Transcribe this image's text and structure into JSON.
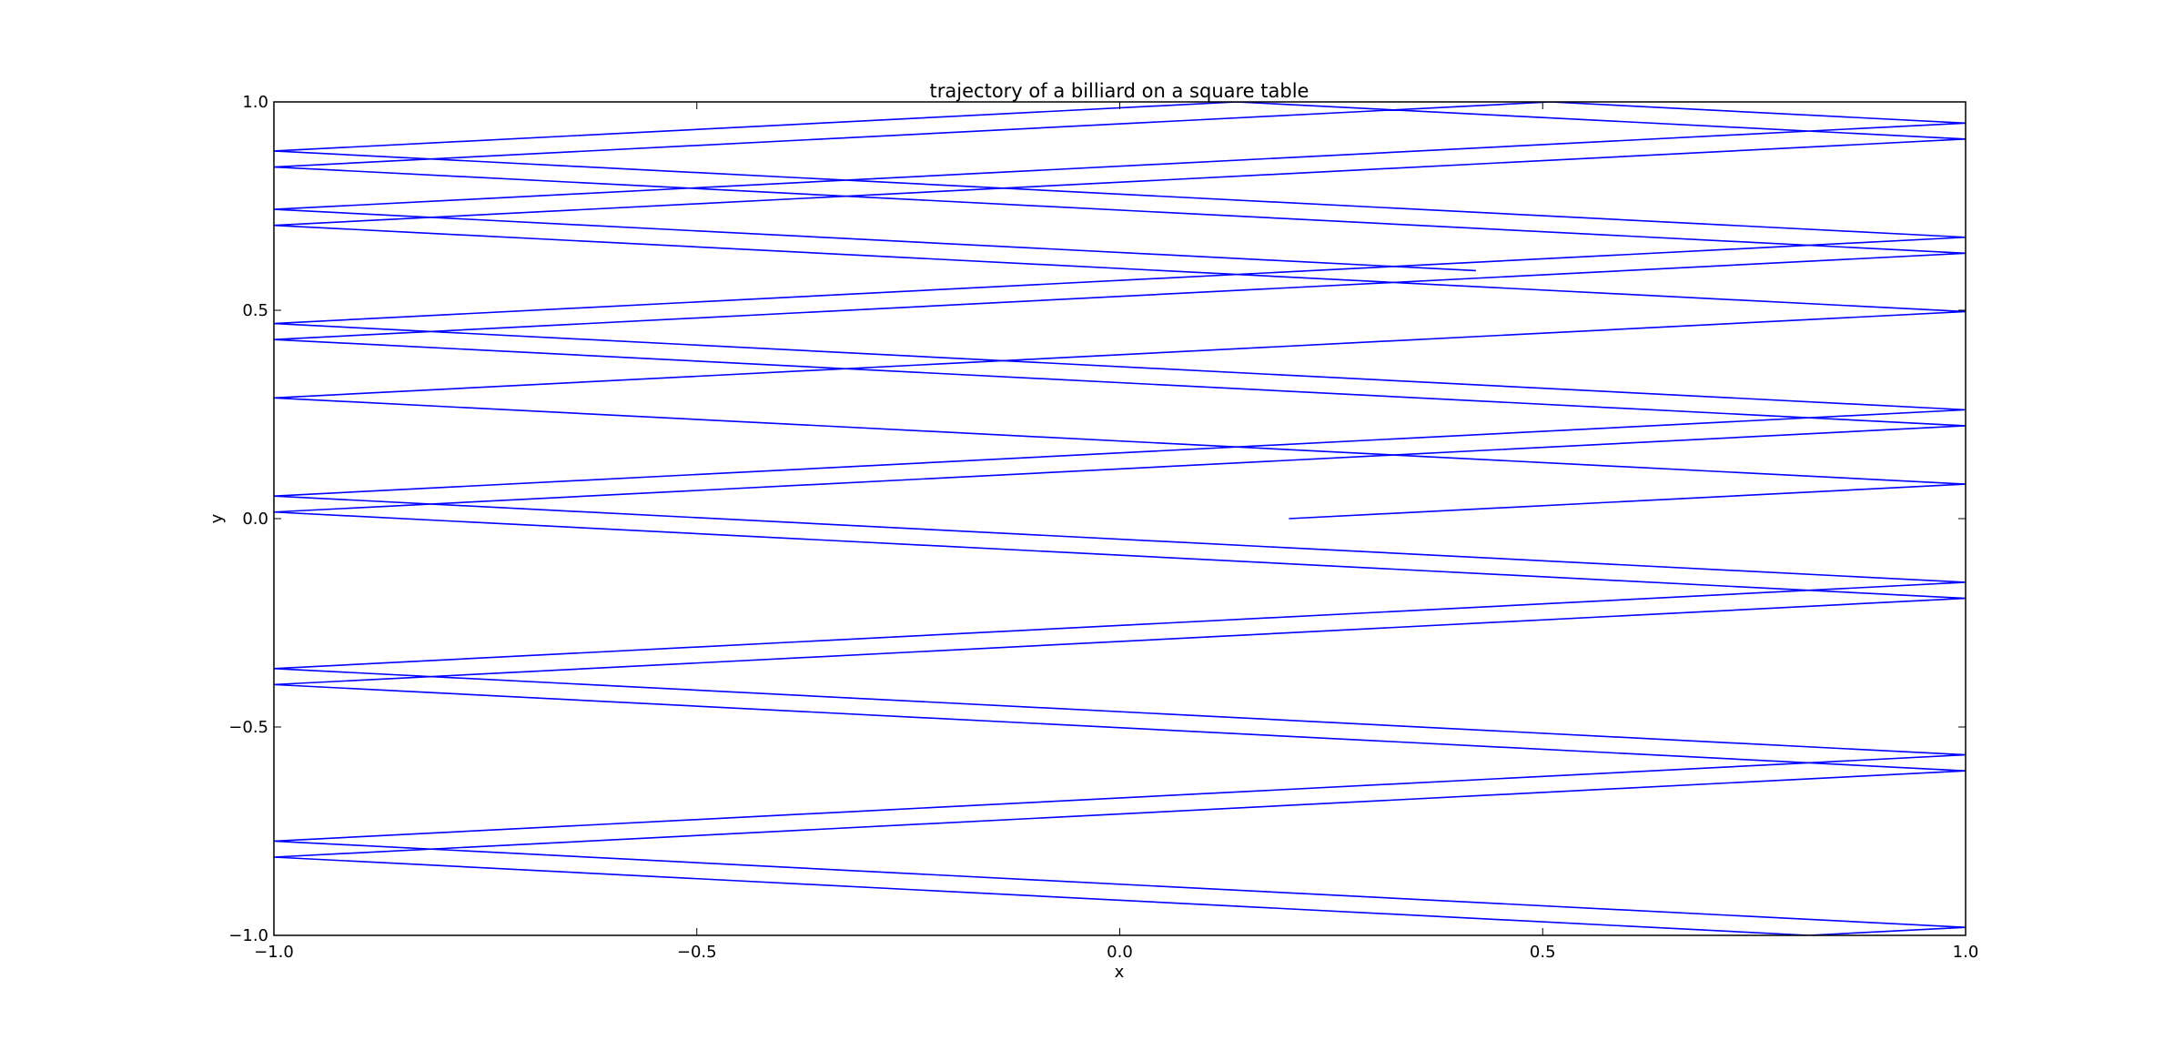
{
  "chart_data": {
    "type": "line",
    "title": "trajectory of a billiard on a square table",
    "xlabel": "x",
    "ylabel": "y",
    "xlim": [
      -1.0,
      1.0
    ],
    "ylim": [
      -1.0,
      1.0
    ],
    "grid": false,
    "x_ticks": [
      "−1.0",
      "−0.5",
      "0.0",
      "0.5",
      "1.0"
    ],
    "y_ticks": [
      "−1.0",
      "−0.5",
      "0.0",
      "0.5",
      "1.0"
    ],
    "series": [
      {
        "color": "#0000ff",
        "start": [
          0.2,
          0.0
        ],
        "direction": [
          1.0,
          0.1035
        ],
        "path_length": 52.5,
        "reflecting_walls": [
          -1.0,
          1.0
        ]
      }
    ]
  }
}
